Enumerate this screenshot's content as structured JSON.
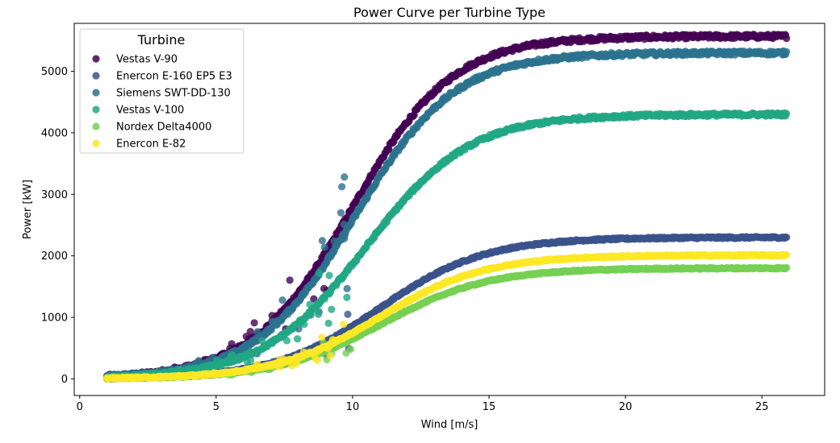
{
  "chart_data": {
    "type": "scatter",
    "title": "Power Curve per Turbine Type",
    "xlabel": "Wind [m/s]",
    "ylabel": "Power [kW]",
    "xlim": [
      -0.2,
      27.3
    ],
    "ylim": [
      -270,
      5780
    ],
    "xticks": [
      0,
      5,
      10,
      15,
      20,
      25
    ],
    "yticks": [
      0,
      1000,
      2000,
      3000,
      4000,
      5000
    ],
    "grid": false,
    "legend": {
      "title": "Turbine",
      "placement": "top-left"
    },
    "x_range": [
      1.0,
      25.9
    ],
    "series": [
      {
        "name": "Vestas V-90",
        "color": "#440154",
        "rated_power": 5570,
        "midpoint": 10.0,
        "steepness": 0.55
      },
      {
        "name": "Enercon E-160 EP5 E3",
        "color": "#3b528b",
        "rated_power": 2300,
        "midpoint": 11.0,
        "steepness": 0.52
      },
      {
        "name": "Siemens SWT-DD-130",
        "color": "#2c728e",
        "rated_power": 5300,
        "midpoint": 10.1,
        "steepness": 0.55
      },
      {
        "name": "Vestas V-100",
        "color": "#21a784",
        "rated_power": 4300,
        "midpoint": 10.5,
        "steepness": 0.53
      },
      {
        "name": "Nordex Delta4000",
        "color": "#75d054",
        "rated_power": 1800,
        "midpoint": 11.1,
        "steepness": 0.52
      },
      {
        "name": "Enercon E-82",
        "color": "#fde725",
        "rated_power": 2010,
        "midpoint": 11.0,
        "steepness": 0.52
      }
    ]
  }
}
